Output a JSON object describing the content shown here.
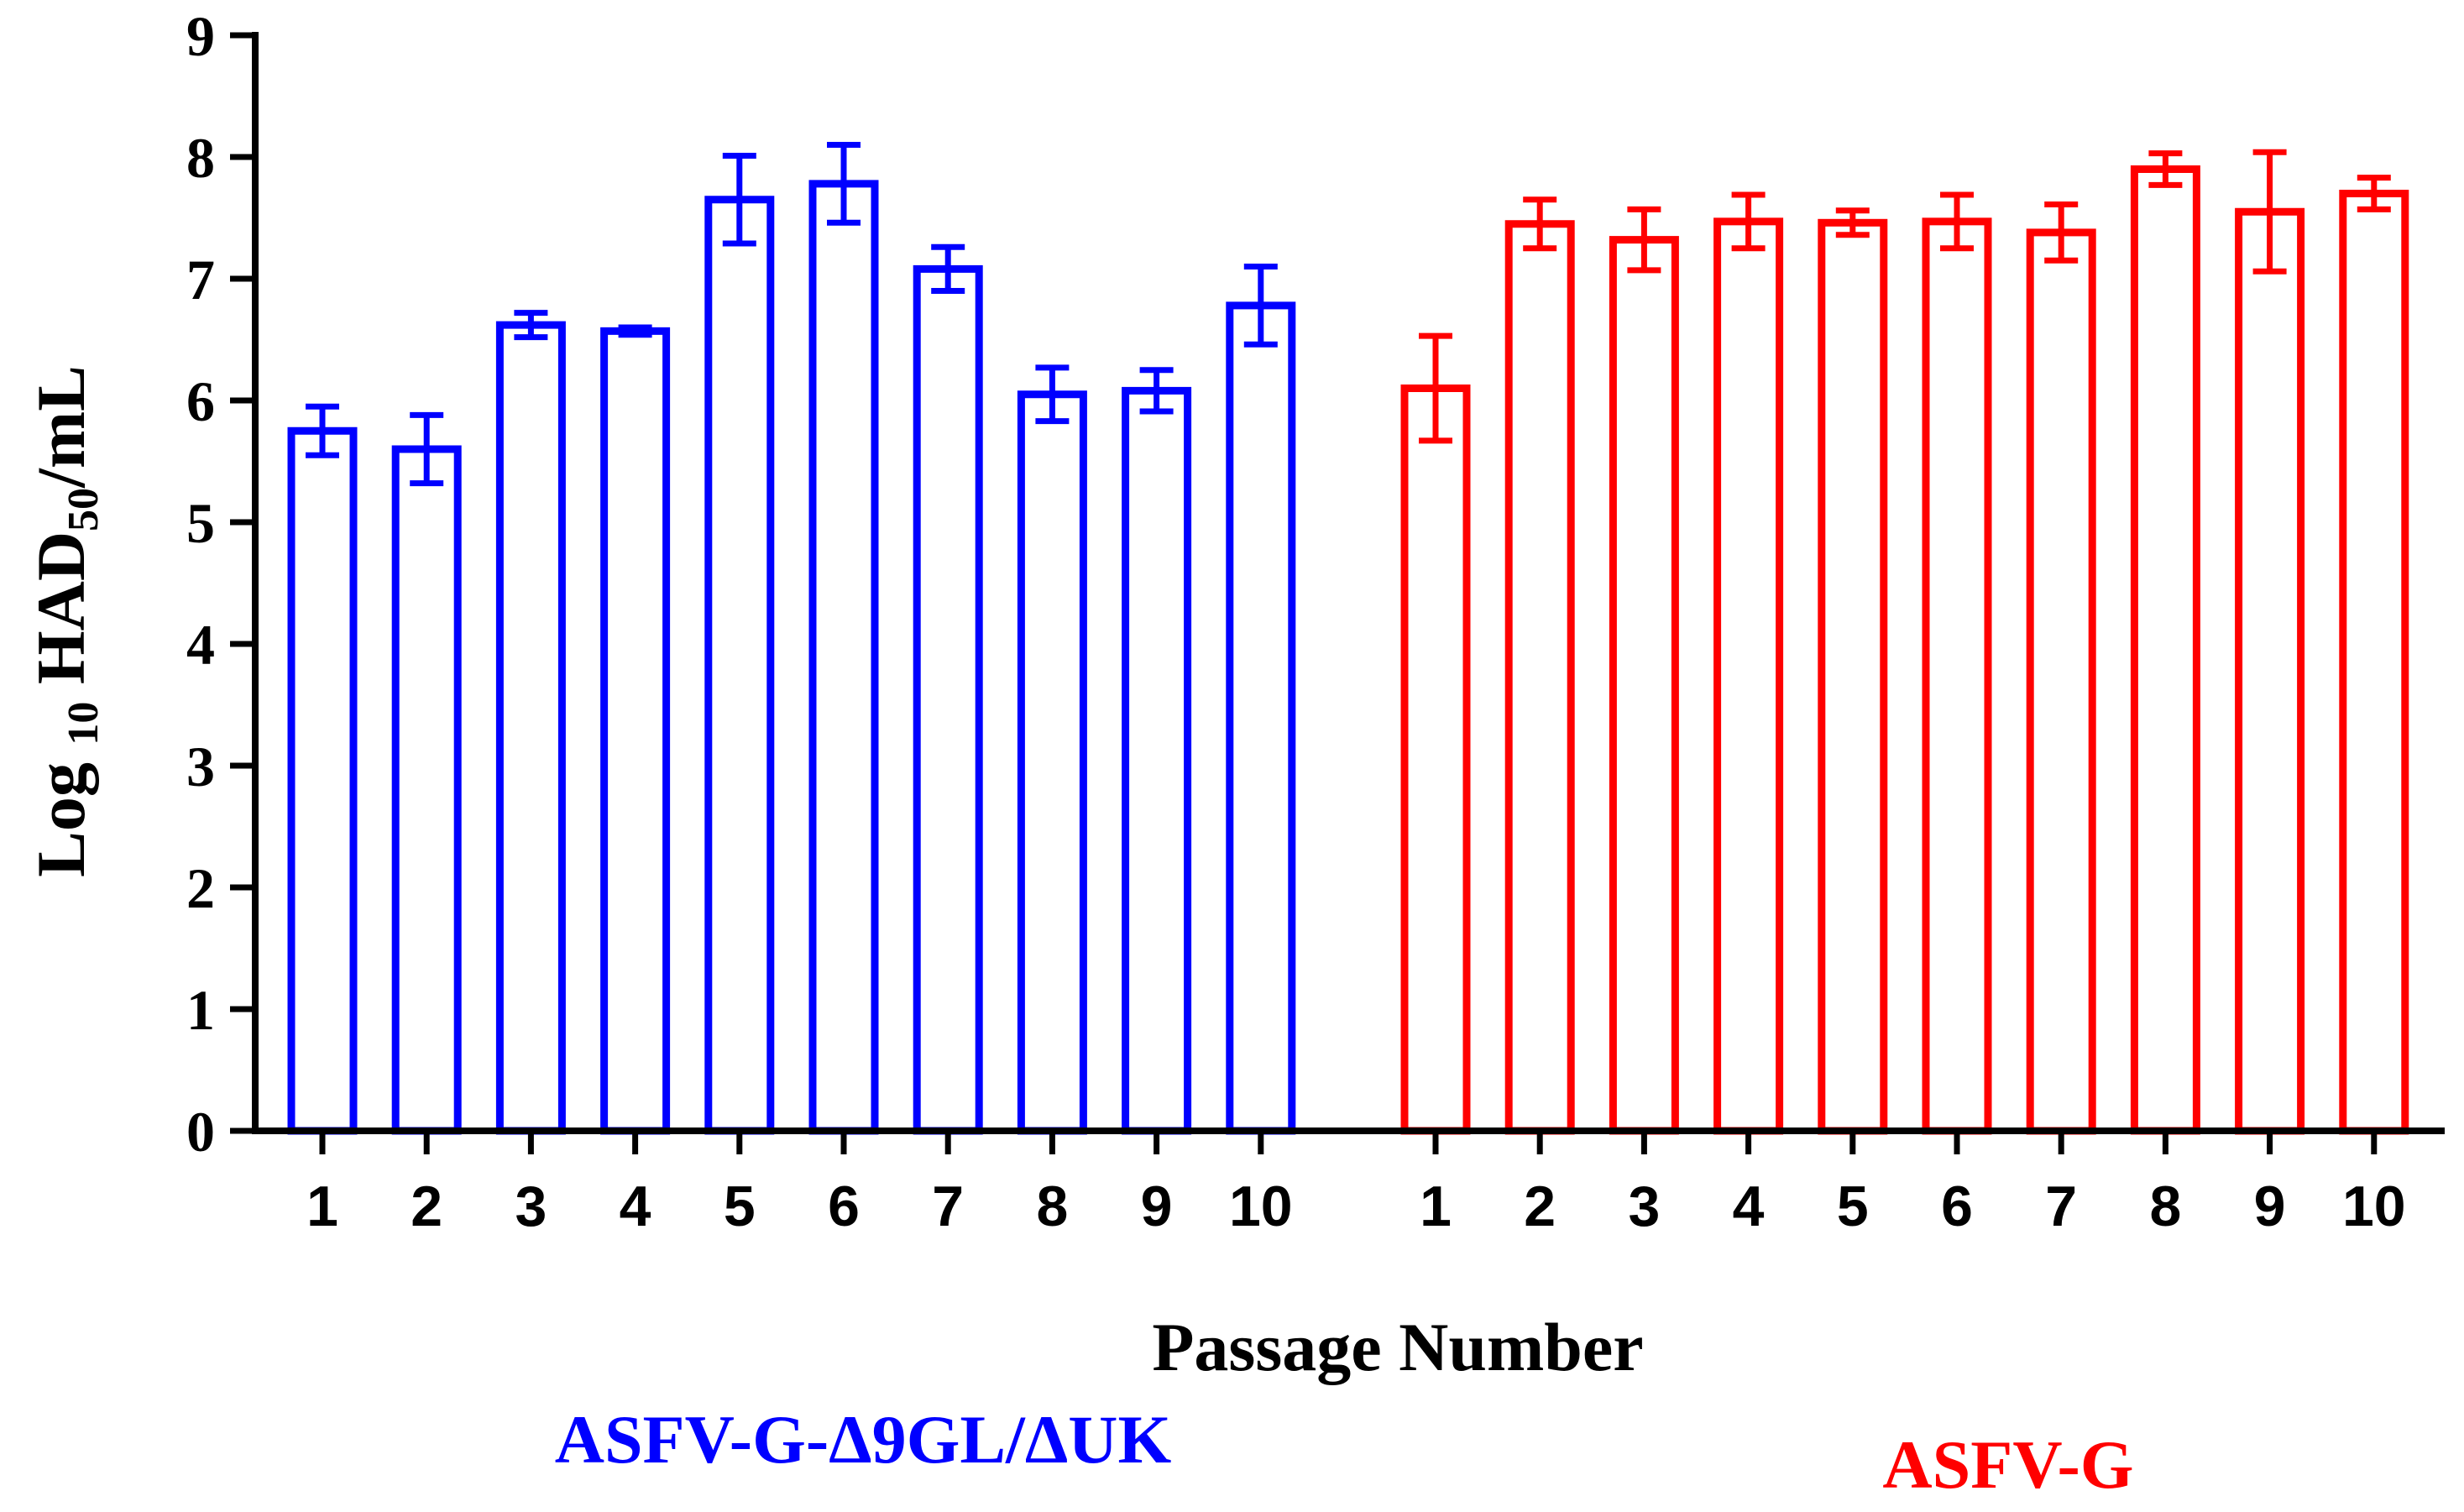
{
  "chart_data": {
    "type": "bar",
    "ylabel_parts": [
      "Log ",
      "10",
      " HAD",
      "50",
      "/mL"
    ],
    "xlabel": "Passage Number",
    "ylim": [
      0,
      9
    ],
    "yticks": [
      "0",
      "1",
      "2",
      "3",
      "4",
      "5",
      "6",
      "7",
      "8",
      "9"
    ],
    "grid": false,
    "series": [
      {
        "name": "ASFV-G-Δ9GL/ΔUK",
        "color": "#0000ff",
        "categories": [
          "1",
          "2",
          "3",
          "4",
          "5",
          "6",
          "7",
          "8",
          "9",
          "10"
        ],
        "values": [
          5.75,
          5.6,
          6.62,
          6.57,
          7.65,
          7.78,
          7.08,
          6.05,
          6.08,
          6.78
        ],
        "errors": [
          0.2,
          0.28,
          0.1,
          0.03,
          0.36,
          0.32,
          0.18,
          0.22,
          0.17,
          0.32
        ]
      },
      {
        "name": "ASFV-G",
        "color": "#ff0000",
        "categories": [
          "1",
          "2",
          "3",
          "4",
          "5",
          "6",
          "7",
          "8",
          "9",
          "10"
        ],
        "values": [
          6.1,
          7.45,
          7.32,
          7.47,
          7.46,
          7.47,
          7.38,
          7.9,
          7.55,
          7.7
        ],
        "errors": [
          0.43,
          0.2,
          0.25,
          0.22,
          0.1,
          0.22,
          0.23,
          0.13,
          0.49,
          0.13
        ]
      }
    ]
  }
}
